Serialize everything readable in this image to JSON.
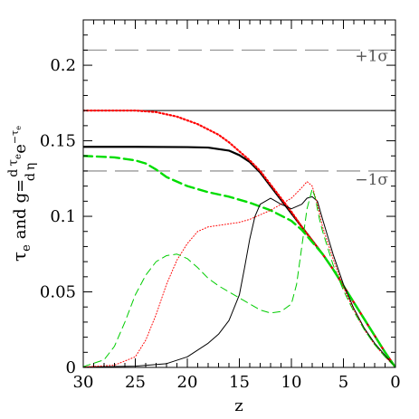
{
  "chart_data": {
    "type": "line",
    "xlabel": "z",
    "ylabel": "τ_e and g = (dτ_e/dη) e^(−τ_e)",
    "ylabel_parts": {
      "tau": "τ",
      "tau_sub": "e",
      "and": "and",
      "g": "g",
      "eq": "=",
      "d": "d",
      "eta": "η",
      "e": "e",
      "exp_minus": "−",
      "exp_tau": "τ",
      "exp_sub": "e"
    },
    "xlim": [
      30,
      0
    ],
    "ylim": [
      0,
      0.23
    ],
    "x_ticks": [
      30,
      25,
      20,
      15,
      10,
      5,
      0
    ],
    "x_tick_labels": [
      "30",
      "25",
      "20",
      "15",
      "10",
      "5",
      "0"
    ],
    "y_ticks": [
      0,
      0.05,
      0.1,
      0.15,
      0.2
    ],
    "y_tick_labels": [
      "0",
      "0.05",
      "0.1",
      "0.15",
      "0.2"
    ],
    "x_minor_step": 1,
    "y_minor_step": 0.01,
    "reference_lines": [
      {
        "y": 0.17,
        "style": "solid",
        "color": "#000000"
      },
      {
        "y": 0.21,
        "style": "dashed",
        "color": "#999999",
        "label": "+1σ"
      },
      {
        "y": 0.13,
        "style": "dashed",
        "color": "#999999",
        "label": "−1σ"
      }
    ],
    "series": [
      {
        "color": "#000000",
        "style": "solid",
        "width": 2.2,
        "points": [
          [
            30,
            0.146
          ],
          [
            25,
            0.146
          ],
          [
            20,
            0.1458
          ],
          [
            18,
            0.1455
          ],
          [
            16,
            0.1435
          ],
          [
            15,
            0.1405
          ],
          [
            14,
            0.136
          ],
          [
            13,
            0.129
          ],
          [
            12,
            0.12
          ],
          [
            11,
            0.111
          ],
          [
            10,
            0.102
          ],
          [
            9,
            0.093
          ],
          [
            8,
            0.084
          ],
          [
            7,
            0.075
          ],
          [
            6,
            0.065
          ],
          [
            5,
            0.054
          ],
          [
            4,
            0.043
          ],
          [
            3,
            0.032
          ],
          [
            2,
            0.021
          ],
          [
            1,
            0.01
          ],
          [
            0,
            0
          ]
        ]
      },
      {
        "color": "#ff0000",
        "style": "dotted",
        "width": 2.2,
        "points": [
          [
            30,
            0.17
          ],
          [
            25,
            0.17
          ],
          [
            23,
            0.169
          ],
          [
            21,
            0.166
          ],
          [
            19,
            0.161
          ],
          [
            17,
            0.154
          ],
          [
            16,
            0.149
          ],
          [
            15,
            0.143
          ],
          [
            14,
            0.137
          ],
          [
            13,
            0.13
          ],
          [
            12,
            0.121
          ],
          [
            11,
            0.112
          ],
          [
            10,
            0.103
          ],
          [
            9,
            0.093
          ],
          [
            8,
            0.084
          ],
          [
            7,
            0.075
          ],
          [
            6,
            0.065
          ],
          [
            5,
            0.054
          ],
          [
            4,
            0.043
          ],
          [
            3,
            0.032
          ],
          [
            2,
            0.021
          ],
          [
            1,
            0.01
          ],
          [
            0,
            0
          ]
        ]
      },
      {
        "color": "#00dd00",
        "style": "dashed",
        "width": 2.4,
        "points": [
          [
            30,
            0.14
          ],
          [
            27,
            0.139
          ],
          [
            25,
            0.137
          ],
          [
            24,
            0.135
          ],
          [
            23,
            0.131
          ],
          [
            22,
            0.126
          ],
          [
            20,
            0.12
          ],
          [
            18,
            0.116
          ],
          [
            16,
            0.113
          ],
          [
            14,
            0.109
          ],
          [
            12,
            0.104
          ],
          [
            10,
            0.097
          ],
          [
            9,
            0.091
          ],
          [
            8,
            0.083
          ],
          [
            7,
            0.075
          ],
          [
            6,
            0.065
          ],
          [
            5,
            0.054
          ],
          [
            4,
            0.043
          ],
          [
            3,
            0.032
          ],
          [
            2,
            0.021
          ],
          [
            1,
            0.01
          ],
          [
            0,
            0
          ]
        ]
      },
      {
        "color": "#000000",
        "style": "solid",
        "width": 1,
        "points": [
          [
            30,
            0.0003
          ],
          [
            25,
            0.0008
          ],
          [
            22,
            0.0025
          ],
          [
            20,
            0.007
          ],
          [
            18,
            0.016
          ],
          [
            17,
            0.022
          ],
          [
            16,
            0.031
          ],
          [
            15,
            0.048
          ],
          [
            14.5,
            0.066
          ],
          [
            14,
            0.085
          ],
          [
            13.5,
            0.1
          ],
          [
            13,
            0.108
          ],
          [
            12,
            0.112
          ],
          [
            11,
            0.108
          ],
          [
            10,
            0.105
          ],
          [
            9,
            0.108
          ],
          [
            8.5,
            0.112
          ],
          [
            8,
            0.113
          ],
          [
            7.5,
            0.11
          ],
          [
            7,
            0.098
          ],
          [
            6,
            0.075
          ],
          [
            5,
            0.055
          ],
          [
            4,
            0.039
          ],
          [
            3,
            0.026
          ],
          [
            2,
            0.016
          ],
          [
            1,
            0.008
          ],
          [
            0,
            0
          ]
        ]
      },
      {
        "color": "#ff0000",
        "style": "dotted",
        "width": 1,
        "points": [
          [
            30,
            0.0003
          ],
          [
            27,
            0.0015
          ],
          [
            25,
            0.007
          ],
          [
            24,
            0.018
          ],
          [
            23,
            0.035
          ],
          [
            22,
            0.055
          ],
          [
            21,
            0.071
          ],
          [
            20,
            0.082
          ],
          [
            19,
            0.09
          ],
          [
            18,
            0.093
          ],
          [
            17,
            0.094
          ],
          [
            16,
            0.095
          ],
          [
            15,
            0.096
          ],
          [
            14,
            0.098
          ],
          [
            13,
            0.101
          ],
          [
            12,
            0.104
          ],
          [
            11,
            0.108
          ],
          [
            10,
            0.112
          ],
          [
            9,
            0.119
          ],
          [
            8.5,
            0.123
          ],
          [
            8,
            0.12
          ],
          [
            7.5,
            0.108
          ],
          [
            7,
            0.093
          ],
          [
            6,
            0.072
          ],
          [
            5,
            0.053
          ],
          [
            4,
            0.038
          ],
          [
            3,
            0.025
          ],
          [
            2,
            0.015
          ],
          [
            1,
            0.007
          ],
          [
            0,
            0
          ]
        ]
      },
      {
        "color": "#00cc00",
        "style": "dashed",
        "width": 1,
        "points": [
          [
            30,
            0.0005
          ],
          [
            28,
            0.005
          ],
          [
            27,
            0.014
          ],
          [
            26,
            0.03
          ],
          [
            25,
            0.048
          ],
          [
            24,
            0.061
          ],
          [
            23,
            0.07
          ],
          [
            22,
            0.074
          ],
          [
            21,
            0.075
          ],
          [
            20,
            0.072
          ],
          [
            19,
            0.066
          ],
          [
            18,
            0.059
          ],
          [
            17,
            0.054
          ],
          [
            16,
            0.05
          ],
          [
            15,
            0.046
          ],
          [
            14,
            0.042
          ],
          [
            13,
            0.038
          ],
          [
            12,
            0.036
          ],
          [
            11,
            0.037
          ],
          [
            10,
            0.042
          ],
          [
            9.5,
            0.055
          ],
          [
            9,
            0.08
          ],
          [
            8.5,
            0.105
          ],
          [
            8,
            0.118
          ],
          [
            7.7,
            0.112
          ],
          [
            7.3,
            0.098
          ],
          [
            7,
            0.09
          ],
          [
            6,
            0.068
          ],
          [
            5,
            0.051
          ],
          [
            4,
            0.037
          ],
          [
            3,
            0.025
          ],
          [
            2,
            0.015
          ],
          [
            1,
            0.007
          ],
          [
            0,
            0
          ]
        ]
      }
    ]
  }
}
